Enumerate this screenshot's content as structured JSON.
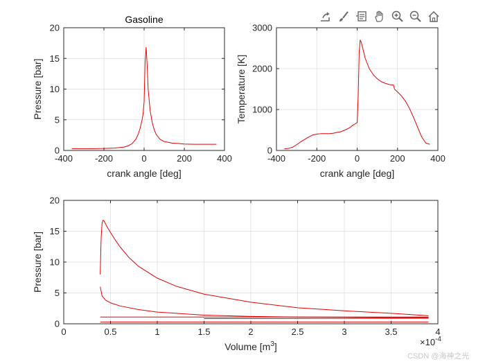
{
  "toolbar": {
    "items": [
      {
        "icon": "export-icon"
      },
      {
        "icon": "brush-icon"
      },
      {
        "icon": "datatip-icon"
      },
      {
        "icon": "pan-hand-icon"
      },
      {
        "icon": "zoom-in-icon"
      },
      {
        "icon": "zoom-out-icon"
      },
      {
        "icon": "home-icon"
      }
    ]
  },
  "watermark": "CSDN @海神之光",
  "colors": {
    "line": "#e60000",
    "grid": "#dcdcdc",
    "axes": "#262626"
  },
  "chart_data": [
    {
      "type": "line",
      "title": "Gasoline",
      "xlabel": "crank angle [deg]",
      "ylabel": "Pressure [bar]",
      "xlim": [
        -400,
        400
      ],
      "ylim": [
        0,
        20
      ],
      "xticks": [
        -400,
        -200,
        0,
        200,
        400
      ],
      "yticks": [
        0,
        5,
        10,
        15,
        20
      ],
      "xtick_labels": [
        "-400",
        "-200",
        "0",
        "200",
        "400"
      ],
      "ytick_labels": [
        "0",
        "5",
        "10",
        "15",
        "20"
      ],
      "grid": true,
      "series": [
        {
          "x": [
            -360,
            -300,
            -250,
            -200,
            -150,
            -100,
            -80,
            -60,
            -40,
            -30,
            -20,
            -10,
            -5,
            0,
            5,
            10,
            15,
            20,
            30,
            40,
            50,
            60,
            80,
            100,
            140,
            180,
            200,
            250,
            300,
            360
          ],
          "y": [
            0.3,
            0.3,
            0.3,
            0.32,
            0.38,
            0.55,
            0.75,
            1.1,
            1.9,
            2.6,
            3.6,
            5.0,
            6.0,
            8.0,
            14.5,
            16.8,
            14.0,
            10.0,
            6.5,
            4.6,
            3.4,
            2.6,
            1.8,
            1.45,
            1.2,
            1.1,
            1.05,
            1.0,
            1.0,
            1.0
          ]
        }
      ]
    },
    {
      "type": "line",
      "title": "",
      "xlabel": "crank angle [deg]",
      "ylabel": "Temperature [K]",
      "xlim": [
        -400,
        400
      ],
      "ylim": [
        0,
        3000
      ],
      "xticks": [
        -400,
        -200,
        0,
        200,
        400
      ],
      "yticks": [
        0,
        1000,
        2000,
        3000
      ],
      "xtick_labels": [
        "-400",
        "-200",
        "0",
        "200",
        "400"
      ],
      "ytick_labels": [
        "0",
        "1000",
        "2000",
        "3000"
      ],
      "grid": true,
      "series": [
        {
          "x": [
            -360,
            -340,
            -320,
            -300,
            -280,
            -260,
            -240,
            -220,
            -200,
            -180,
            -160,
            -140,
            -120,
            -100,
            -80,
            -60,
            -40,
            -20,
            0,
            5,
            10,
            15,
            20,
            30,
            40,
            60,
            80,
            100,
            120,
            140,
            160,
            180,
            185,
            200,
            220,
            240,
            260,
            280,
            300,
            320,
            340,
            360
          ],
          "y": [
            40,
            50,
            80,
            140,
            210,
            270,
            330,
            380,
            400,
            410,
            410,
            410,
            420,
            440,
            460,
            500,
            550,
            620,
            680,
            1300,
            2400,
            2700,
            2650,
            2450,
            2250,
            2000,
            1850,
            1750,
            1680,
            1640,
            1610,
            1600,
            1500,
            1430,
            1330,
            1200,
            1020,
            800,
            560,
            330,
            180,
            150
          ]
        }
      ]
    },
    {
      "type": "line",
      "title": "",
      "xlabel": "Volume [m",
      "xlabel_sup": "3",
      "xlabel_end": "]",
      "ylabel": "Pressure [bar]",
      "xlim": [
        0,
        4
      ],
      "ylim": [
        0,
        20
      ],
      "xticks": [
        0,
        0.5,
        1,
        1.5,
        2,
        2.5,
        3,
        3.5,
        4
      ],
      "yticks": [
        0,
        5,
        10,
        15,
        20
      ],
      "xtick_labels": [
        "0",
        "0.5",
        "1",
        "1.5",
        "2",
        "2.5",
        "3",
        "3.5",
        "4"
      ],
      "ytick_labels": [
        "0",
        "5",
        "10",
        "15",
        "20"
      ],
      "x_exponent_base": "×10",
      "x_exponent": "-4",
      "grid": true,
      "series": [
        {
          "x": [
            0.39,
            0.4,
            0.41,
            0.42,
            0.43,
            0.44,
            0.46,
            0.5,
            0.55,
            0.6,
            0.7,
            0.8,
            1.0,
            1.2,
            1.5,
            2.0,
            2.5,
            3.0,
            3.5,
            3.9
          ],
          "y": [
            8.0,
            14.0,
            16.3,
            16.8,
            16.7,
            16.4,
            15.8,
            14.8,
            13.6,
            12.5,
            10.7,
            9.3,
            7.4,
            6.1,
            4.8,
            3.5,
            2.6,
            2.1,
            1.7,
            1.3
          ]
        },
        {
          "x": [
            3.9,
            3.5,
            3.0,
            2.5,
            2.0,
            1.5,
            1.0,
            0.8,
            0.6,
            0.5,
            0.45,
            0.41,
            0.39
          ],
          "y": [
            1.0,
            1.0,
            1.05,
            1.1,
            1.2,
            1.4,
            1.9,
            2.3,
            2.9,
            3.4,
            3.8,
            4.5,
            6.0
          ]
        },
        {
          "x": [
            0.39,
            3.9
          ],
          "y": [
            1.1,
            1.1
          ]
        },
        {
          "x": [
            0.39,
            3.9
          ],
          "y": [
            0.3,
            0.3
          ]
        },
        {
          "x": [
            1.5,
            3.9
          ],
          "y": [
            0.85,
            0.9
          ]
        }
      ]
    }
  ]
}
